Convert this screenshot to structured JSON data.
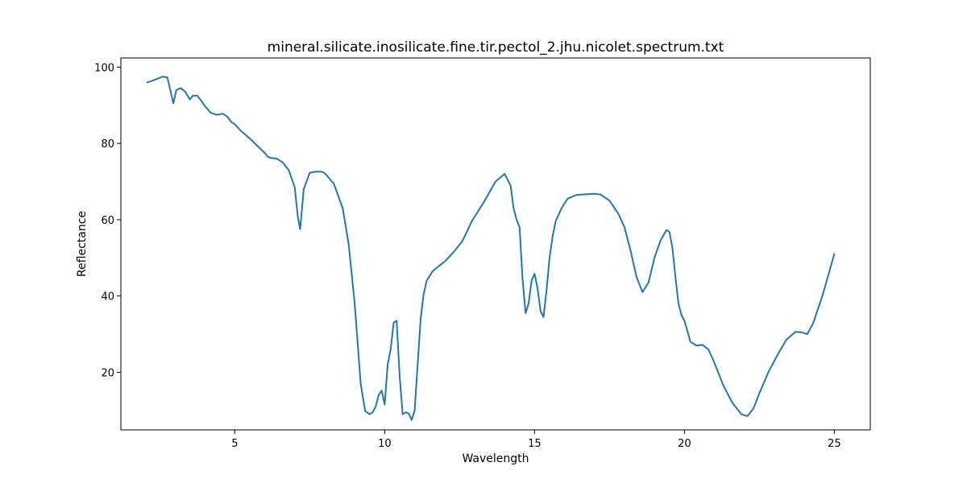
{
  "chart_data": {
    "type": "line",
    "title": "mineral.silicate.inosilicate.fine.tir.pectol_2.jhu.nicolet.spectrum.txt",
    "xlabel": "Wavelength",
    "ylabel": "Reflectance",
    "xlim": [
      1.2,
      26.2
    ],
    "ylim": [
      4.9,
      102.4
    ],
    "grid": false,
    "legend": "none",
    "line_color": "#1f77b4",
    "x_ticks": [
      {
        "value": 5,
        "label": "5"
      },
      {
        "value": 10,
        "label": "10"
      },
      {
        "value": 15,
        "label": "15"
      },
      {
        "value": 20,
        "label": "20"
      },
      {
        "value": 25,
        "label": "25"
      }
    ],
    "y_ticks": [
      {
        "value": 20,
        "label": "20"
      },
      {
        "value": 40,
        "label": "40"
      },
      {
        "value": 60,
        "label": "60"
      },
      {
        "value": 80,
        "label": "80"
      },
      {
        "value": 100,
        "label": "100"
      }
    ],
    "series": [
      {
        "x": [
          2.08,
          2.2,
          2.4,
          2.6,
          2.75,
          2.85,
          2.95,
          3.05,
          3.2,
          3.35,
          3.5,
          3.6,
          3.75,
          3.9,
          4.0,
          4.2,
          4.4,
          4.6,
          4.75,
          4.9,
          5.0,
          5.2,
          5.5,
          5.8,
          6.0,
          6.1,
          6.2,
          6.4,
          6.6,
          6.8,
          7.0,
          7.1,
          7.18,
          7.3,
          7.5,
          7.7,
          7.9,
          8.0,
          8.3,
          8.6,
          8.8,
          9.0,
          9.2,
          9.35,
          9.5,
          9.6,
          9.7,
          9.8,
          9.9,
          10.0,
          10.1,
          10.2,
          10.3,
          10.4,
          10.5,
          10.6,
          10.7,
          10.8,
          10.9,
          11.0,
          11.1,
          11.2,
          11.3,
          11.4,
          11.6,
          11.8,
          12.0,
          12.3,
          12.6,
          12.9,
          13.3,
          13.7,
          14.0,
          14.2,
          14.3,
          14.4,
          14.5,
          14.6,
          14.7,
          14.8,
          14.9,
          15.0,
          15.1,
          15.2,
          15.3,
          15.4,
          15.5,
          15.6,
          15.7,
          15.9,
          16.1,
          16.4,
          16.8,
          17.0,
          17.2,
          17.5,
          17.8,
          18.0,
          18.2,
          18.4,
          18.6,
          18.8,
          19.0,
          19.2,
          19.4,
          19.5,
          19.6,
          19.7,
          19.8,
          19.9,
          20.0,
          20.2,
          20.4,
          20.6,
          20.8,
          21.0,
          21.3,
          21.6,
          21.9,
          22.1,
          22.3,
          22.5,
          22.8,
          23.1,
          23.4,
          23.7,
          23.9,
          24.1,
          24.3,
          24.6,
          24.8,
          25.0
        ],
        "y": [
          96.0,
          96.3,
          96.9,
          97.5,
          97.3,
          94.0,
          90.5,
          94.0,
          94.5,
          93.5,
          91.5,
          92.5,
          92.5,
          91.0,
          89.8,
          88.0,
          87.5,
          87.8,
          87.0,
          85.5,
          85.0,
          83.3,
          81.3,
          79.0,
          77.5,
          76.5,
          76.2,
          76.0,
          75.0,
          73.0,
          68.5,
          61.0,
          57.5,
          68.0,
          72.3,
          72.6,
          72.6,
          72.2,
          69.5,
          63.0,
          53.5,
          38.0,
          17.0,
          9.8,
          9.0,
          9.5,
          11.0,
          14.0,
          15.2,
          11.5,
          22.0,
          26.0,
          33.0,
          33.5,
          19.0,
          9.0,
          9.5,
          9.2,
          7.5,
          10.0,
          22.0,
          34.0,
          40.5,
          44.0,
          46.5,
          47.8,
          49.0,
          51.5,
          54.5,
          59.5,
          64.5,
          70.0,
          72.0,
          69.0,
          63.0,
          60.0,
          58.0,
          44.5,
          35.5,
          38.0,
          44.0,
          45.8,
          42.0,
          36.0,
          34.5,
          41.5,
          50.0,
          55.5,
          59.5,
          63.0,
          65.5,
          66.5,
          66.7,
          66.8,
          66.6,
          65.0,
          61.5,
          58.0,
          52.0,
          45.0,
          41.0,
          43.5,
          50.0,
          54.5,
          57.3,
          56.8,
          52.5,
          45.0,
          38.0,
          35.0,
          33.5,
          28.0,
          27.0,
          27.2,
          26.0,
          22.5,
          16.5,
          12.0,
          9.0,
          8.5,
          10.5,
          14.5,
          20.0,
          24.5,
          28.5,
          30.6,
          30.5,
          30.0,
          33.0,
          40.0,
          45.5,
          51.0
        ]
      }
    ]
  }
}
